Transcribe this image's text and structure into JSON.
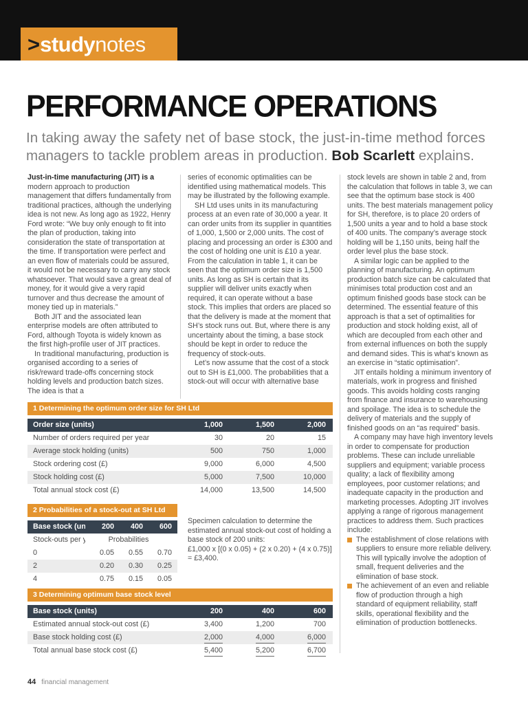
{
  "masthead": {
    "prompt": ">",
    "word1": "study",
    "word2": "notes"
  },
  "header": {
    "title": "PERFORMANCE OPERATIONS",
    "deck_1": "In taking away the safety net of base stock, the just-in-time method forces managers to tackle problem areas in production. ",
    "deck_bold": "Bob Scarlett",
    "deck_2": " explains."
  },
  "columns": {
    "col1": {
      "p1_lead": "Just-in-time manufacturing (JIT) is a",
      "p1_rest": " modern approach to production management that differs fundamentally from traditional practices, although the underlying idea is not new. As long ago as 1922, Henry Ford wrote: “We buy only enough to fit into the plan of production, taking into consideration the state of transportation at the time. If transportation were perfect and an even flow of materials could be assured, it would not be necessary to carry any stock whatsoever. That would save a great deal of money, for it would give a very rapid turnover and thus decrease the amount of money tied up in materials.”",
      "p2": "Both JIT and the associated lean enterprise models are often attributed to Ford, although Toyota is widely known as the first high-profile user of JIT practices.",
      "p3": "In traditional manufacturing, production is organised according to a series of risk/reward trade-offs concerning stock holding levels and production batch sizes. The idea is that a"
    },
    "col2": {
      "p1": "series of economic optimalities can be identified using mathematical models. This may be illustrated by the following example.",
      "p2": "SH Ltd uses units in its manufacturing process at an even rate of 30,000 a year. It can order units from its supplier in quantities of 1,000, 1,500 or 2,000 units. The cost of placing and processing an order is £300 and the cost of holding one unit is £10 a year. From the calculation in table 1, it can be seen that the optimum order size is 1,500 units. As long as SH is certain that its supplier will deliver units exactly when required, it can operate without a base stock. This implies that orders are placed so that the delivery is made at the moment that SH’s stock runs out. But, where there is any uncertainty about the timing, a base stock should be kept in order to reduce the frequency of stock-outs.",
      "p3": "Let’s now assume that the cost of a stock out to SH is £1,000. The probabilities that a stock-out will occur with alternative base"
    },
    "col3": {
      "p1": "stock levels are shown in table 2 and, from the calculation that follows in table 3, we can see that the optimum base stock is 400 units. The best materials management policy for SH, therefore, is to place 20 orders of 1,500 units a year and to hold a base stock of 400 units. The company’s average stock holding will be 1,150 units, being half the order level plus the base stock.",
      "p2": "A similar logic can be applied to the planning of manufacturing. An optimum production batch size can be calculated that minimises total production cost and an optimum finished goods base stock can be determined. The essential feature of this approach is that a set of optimalities for production and stock holding exist, all of which are decoupled from each other and from external influences on both the supply and demand sides. This is what’s known as an exercise in “static optimisation”.",
      "p3": "JIT entails holding a minimum inventory of materials, work in progress and finished goods. This avoids holding costs ranging from finance and insurance to warehousing and spoilage. The idea is to schedule the delivery of materials and the supply of finished goods on an “as required” basis.",
      "p4": "A company may have high inventory levels in order to compensate for production problems. These can include unreliable suppliers and equipment; variable process quality; a lack of flexibility among employees, poor customer relations; and inadequate capacity in the production and marketing processes. Adopting JIT involves applying a range of rigorous management practices to address them. Such practices include:",
      "bullets": [
        "The establishment of close relations with suppliers to ensure more reliable delivery. This will typically involve the adoption of small, frequent deliveries and the elimination of base stock.",
        "The achievement of an even and reliable flow of production through a high standard of equipment reliability, staff skills, operational flexibility and the elimination of production bottlenecks."
      ]
    }
  },
  "tables": {
    "t1": {
      "title": "1  Determining the optimum order size for SH Ltd",
      "header": {
        "label": "Order size (units)",
        "c1": "1,000",
        "c2": "1,500",
        "c3": "2,000"
      },
      "rows": [
        {
          "label": "Number of orders required per year",
          "c1": "30",
          "c2": "20",
          "c3": "15"
        },
        {
          "label": "Average stock holding (units)",
          "c1": "500",
          "c2": "750",
          "c3": "1,000"
        },
        {
          "label": "Stock ordering cost (£)",
          "c1": "9,000",
          "c2": "6,000",
          "c3": "4,500"
        },
        {
          "label": "Stock holding cost (£)",
          "c1": "5,000",
          "c2": "7,500",
          "c3": "10,000"
        },
        {
          "label": "Total annual stock cost (£)",
          "c1": "14,000",
          "c2": "13,500",
          "c3": "14,500"
        }
      ]
    },
    "t2": {
      "title": "2  Probabilities of a stock-out at SH Ltd",
      "header": {
        "label": "Base stock (units)",
        "c1": "200",
        "c2": "400",
        "c3": "600"
      },
      "subheader": {
        "label": "Stock-outs per year",
        "span": "Probabilities"
      },
      "rows": [
        {
          "label": "0",
          "c1": "0.05",
          "c2": "0.55",
          "c3": "0.70"
        },
        {
          "label": "2",
          "c1": "0.20",
          "c2": "0.30",
          "c3": "0.25"
        },
        {
          "label": "4",
          "c1": "0.75",
          "c2": "0.15",
          "c3": "0.05"
        }
      ]
    },
    "specimen": {
      "intro": "Specimen calculation to determine the estimated annual stock-out cost of holding a base stock of 200 units:",
      "formula": "£1,000 x [(0 x 0.05) + (2 x 0.20) + (4 x 0.75)] = £3,400."
    },
    "t3": {
      "title": "3  Determining optimum base stock level",
      "header": {
        "label": "Base stock (units)",
        "c1": "200",
        "c2": "400",
        "c3": "600"
      },
      "rows": [
        {
          "label": "Estimated annual stock-out cost (£)",
          "c1": "3,400",
          "c2": "1,200",
          "c3": "700"
        },
        {
          "label": "Base stock holding cost (£)",
          "c1": "2,000",
          "c2": "4,000",
          "c3": "6,000"
        },
        {
          "label": "Total annual base stock cost (£)",
          "c1": "5,400",
          "c2": "5,200",
          "c3": "6,700"
        }
      ]
    }
  },
  "footer": {
    "page": "44",
    "label": "financial management"
  },
  "colors": {
    "accent": "#e4942e",
    "table_header": "#36424f",
    "masthead_black": "#111111"
  }
}
